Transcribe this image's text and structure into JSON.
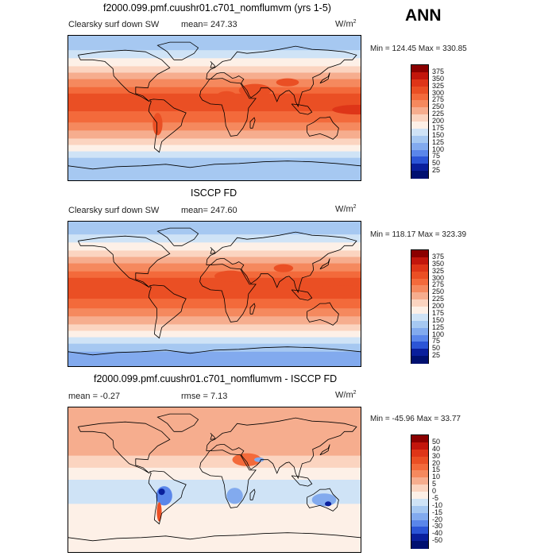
{
  "season": "ANN",
  "chart_data": [
    {
      "type": "heatmap",
      "title": "f2000.099.pmf.cuushr01.c701_nomflumvm (yrs 1-5)",
      "variable": "Clearsky surf down SW",
      "mean_text": "mean= 247.33",
      "units_base": "W/m",
      "units_exp": "2",
      "minmax_text": "Min = 124.45 Max = 330.85",
      "min": 124.45,
      "max": 330.85,
      "levels": [
        375,
        350,
        325,
        300,
        275,
        250,
        225,
        200,
        175,
        150,
        125,
        100,
        75,
        50,
        25
      ],
      "colors": [
        "#8b0000",
        "#c2160c",
        "#de3518",
        "#ea4f24",
        "#f36a3b",
        "#f5895e",
        "#f6ad8e",
        "#fbd4c0",
        "#fdf0e7",
        "#cfe3f6",
        "#a6c8f1",
        "#82aaee",
        "#5a86ea",
        "#2c55d6",
        "#0a1f9c",
        "#001070"
      ],
      "bands": [
        {
          "lat_from": 90,
          "lat_to": 72,
          "value": 140
        },
        {
          "lat_from": 72,
          "lat_to": 62,
          "value": 165
        },
        {
          "lat_from": 62,
          "lat_to": 52,
          "value": 190
        },
        {
          "lat_from": 52,
          "lat_to": 44,
          "value": 215
        },
        {
          "lat_from": 44,
          "lat_to": 36,
          "value": 240
        },
        {
          "lat_from": 36,
          "lat_to": 26,
          "value": 262
        },
        {
          "lat_from": 26,
          "lat_to": 18,
          "value": 285
        },
        {
          "lat_from": 18,
          "lat_to": -4,
          "value": 310
        },
        {
          "lat_from": -4,
          "lat_to": -18,
          "value": 290
        },
        {
          "lat_from": -18,
          "lat_to": -28,
          "value": 265
        },
        {
          "lat_from": -28,
          "lat_to": -38,
          "value": 240
        },
        {
          "lat_from": -38,
          "lat_to": -46,
          "value": 212
        },
        {
          "lat_from": -46,
          "lat_to": -54,
          "value": 188
        },
        {
          "lat_from": -54,
          "lat_to": -62,
          "value": 165
        },
        {
          "lat_from": -62,
          "lat_to": -72,
          "value": 145
        },
        {
          "lat_from": -72,
          "lat_to": -90,
          "value": 128
        }
      ],
      "spots": [
        {
          "lon": 50,
          "lat": 22,
          "rlon": 20,
          "rlat": 8,
          "value": 315
        },
        {
          "lon": 15,
          "lat": 15,
          "rlon": 12,
          "rlat": 6,
          "value": 320
        },
        {
          "lon": 90,
          "lat": 32,
          "rlon": 14,
          "rlat": 5,
          "value": 300
        },
        {
          "lon": -70,
          "lat": -20,
          "rlon": 6,
          "rlat": 14,
          "value": 320
        },
        {
          "lon": 175,
          "lat": -2,
          "rlon": 30,
          "rlat": 6,
          "value": 325
        }
      ]
    },
    {
      "type": "heatmap",
      "title": "ISCCP FD",
      "variable": "Clearsky surf down SW",
      "mean_text": "mean= 247.60",
      "units_base": "W/m",
      "units_exp": "2",
      "minmax_text": "Min = 118.17 Max = 323.39",
      "min": 118.17,
      "max": 323.39,
      "levels": [
        375,
        350,
        325,
        300,
        275,
        250,
        225,
        200,
        175,
        150,
        125,
        100,
        75,
        50,
        25
      ],
      "colors": [
        "#8b0000",
        "#c2160c",
        "#de3518",
        "#ea4f24",
        "#f36a3b",
        "#f5895e",
        "#f6ad8e",
        "#fbd4c0",
        "#fdf0e7",
        "#cfe3f6",
        "#a6c8f1",
        "#82aaee",
        "#5a86ea",
        "#2c55d6",
        "#0a1f9c",
        "#001070"
      ],
      "bands": [
        {
          "lat_from": 90,
          "lat_to": 74,
          "value": 135
        },
        {
          "lat_from": 74,
          "lat_to": 64,
          "value": 160
        },
        {
          "lat_from": 64,
          "lat_to": 54,
          "value": 187
        },
        {
          "lat_from": 54,
          "lat_to": 46,
          "value": 212
        },
        {
          "lat_from": 46,
          "lat_to": 38,
          "value": 238
        },
        {
          "lat_from": 38,
          "lat_to": 28,
          "value": 262
        },
        {
          "lat_from": 28,
          "lat_to": 20,
          "value": 285
        },
        {
          "lat_from": 20,
          "lat_to": -6,
          "value": 306
        },
        {
          "lat_from": -6,
          "lat_to": -18,
          "value": 290
        },
        {
          "lat_from": -18,
          "lat_to": -28,
          "value": 266
        },
        {
          "lat_from": -28,
          "lat_to": -38,
          "value": 240
        },
        {
          "lat_from": -38,
          "lat_to": -46,
          "value": 213
        },
        {
          "lat_from": -46,
          "lat_to": -54,
          "value": 188
        },
        {
          "lat_from": -54,
          "lat_to": -62,
          "value": 165
        },
        {
          "lat_from": -62,
          "lat_to": -72,
          "value": 143
        },
        {
          "lat_from": -72,
          "lat_to": -90,
          "value": 122
        }
      ],
      "spots": [
        {
          "lon": 85,
          "lat": 32,
          "rlon": 12,
          "rlat": 5,
          "value": 300
        },
        {
          "lon": 20,
          "lat": 22,
          "rlon": 20,
          "rlat": 7,
          "value": 305
        },
        {
          "lon": 160,
          "lat": 2,
          "rlon": 60,
          "rlat": 8,
          "value": 312
        }
      ]
    },
    {
      "type": "heatmap",
      "title": "f2000.099.pmf.cuushr01.c701_nomflumvm - ISCCP FD",
      "variable": "",
      "mean_text": "mean =   -0.27",
      "rmse_text": "rmse =   7.13",
      "units_base": "W/m",
      "units_exp": "2",
      "minmax_text": "Min = -45.96 Max =  33.77",
      "min": -45.96,
      "max": 33.77,
      "levels": [
        50,
        40,
        30,
        20,
        15,
        10,
        5,
        0,
        -5,
        -10,
        -15,
        -20,
        -30,
        -40,
        -50
      ],
      "colors": [
        "#8b0000",
        "#c2160c",
        "#de3518",
        "#ea4f24",
        "#f36a3b",
        "#f5895e",
        "#f6ad8e",
        "#fbd4c0",
        "#fdf0e7",
        "#cfe3f6",
        "#a6c8f1",
        "#82aaee",
        "#5a86ea",
        "#2c55d6",
        "#0a1f9c",
        "#001070"
      ],
      "bands": [
        {
          "lat_from": 90,
          "lat_to": 60,
          "value": 6
        },
        {
          "lat_from": 60,
          "lat_to": 30,
          "value": 8
        },
        {
          "lat_from": 30,
          "lat_to": 15,
          "value": 4
        },
        {
          "lat_from": 15,
          "lat_to": 0,
          "value": -2
        },
        {
          "lat_from": 0,
          "lat_to": -30,
          "value": -7
        },
        {
          "lat_from": -30,
          "lat_to": -55,
          "value": -3
        },
        {
          "lat_from": -55,
          "lat_to": -90,
          "value": -4
        }
      ],
      "spots": [
        {
          "lon": 40,
          "lat": 25,
          "rlon": 18,
          "rlat": 8,
          "value": 18
        },
        {
          "lon": 55,
          "lat": 25,
          "rlon": 6,
          "rlat": 3,
          "value": -20
        },
        {
          "lon": 25,
          "lat": -20,
          "rlon": 10,
          "rlat": 10,
          "value": -20
        },
        {
          "lon": 135,
          "lat": -25,
          "rlon": 15,
          "rlat": 8,
          "value": -18
        },
        {
          "lon": 140,
          "lat": -30,
          "rlon": 4,
          "rlat": 3,
          "value": -42
        },
        {
          "lon": -62,
          "lat": -20,
          "rlon": 10,
          "rlat": 12,
          "value": -25
        },
        {
          "lon": -65,
          "lat": -15,
          "rlon": 4,
          "rlat": 4,
          "value": -42
        },
        {
          "lon": -68,
          "lat": -40,
          "rlon": 3,
          "rlat": 12,
          "value": 22
        }
      ]
    }
  ]
}
